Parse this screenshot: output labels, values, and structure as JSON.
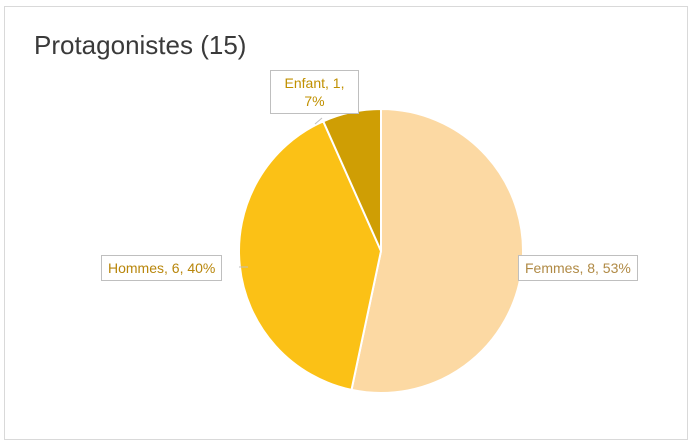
{
  "chart_data": {
    "type": "pie",
    "title": "Protagonistes (15)",
    "categories": [
      "Femmes",
      "Hommes",
      "Enfant"
    ],
    "values": [
      8,
      6,
      1
    ],
    "percentages": [
      53,
      40,
      7
    ],
    "colors": [
      "#fcd9a3",
      "#fbc116",
      "#cf9e04"
    ],
    "label_colors": [
      "#b08a45",
      "#b8860b",
      "#c09000"
    ],
    "labels": [
      "Femmes, 8, 53%",
      "Hommes, 6, 40%",
      "Enfant, 1, 7%"
    ],
    "legend": false
  }
}
